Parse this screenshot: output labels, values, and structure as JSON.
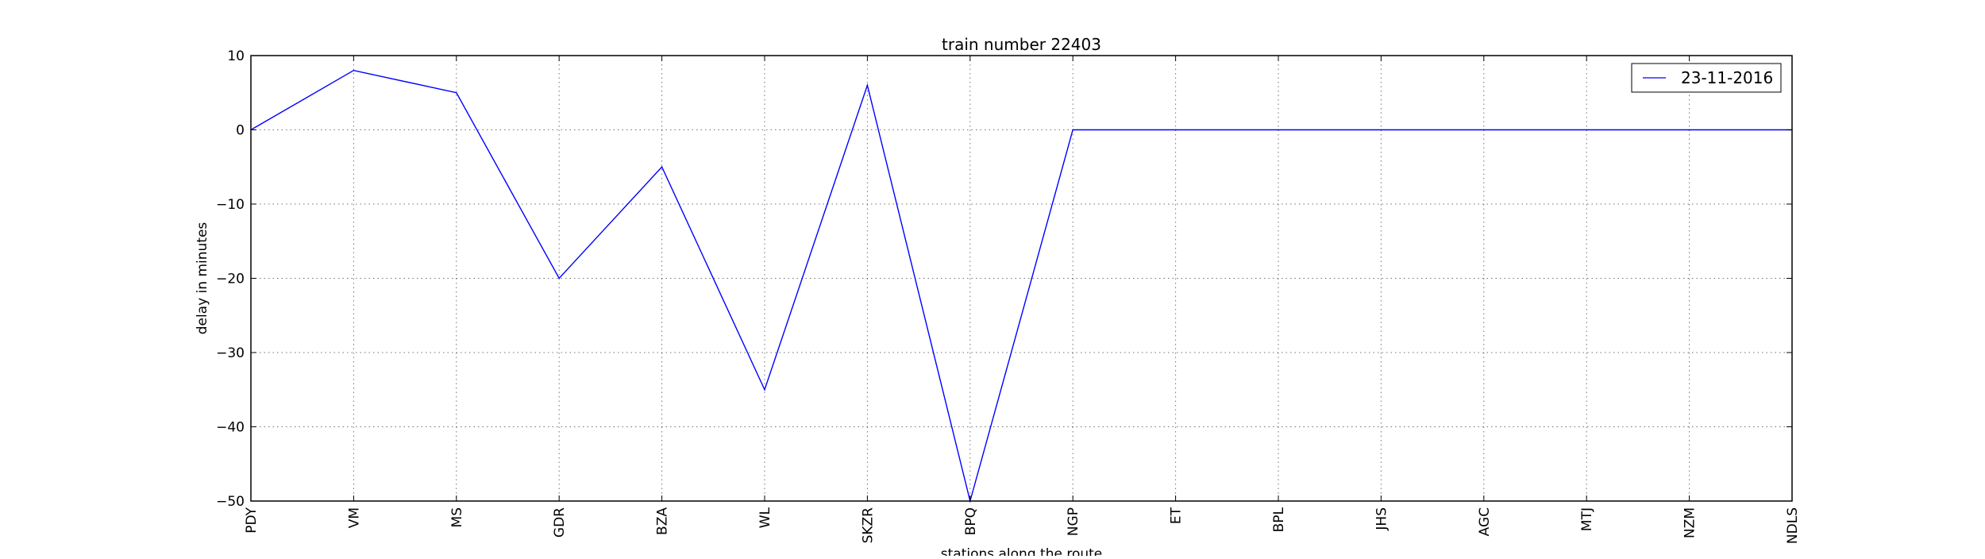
{
  "chart_data": {
    "type": "line",
    "title": "train number 22403",
    "xlabel": "stations along the route",
    "ylabel": "delay in minutes",
    "categories": [
      "PDY",
      "VM",
      "MS",
      "GDR",
      "BZA",
      "WL",
      "SKZR",
      "BPQ",
      "NGP",
      "ET",
      "BPL",
      "JHS",
      "AGC",
      "MTJ",
      "NZM",
      "NDLS"
    ],
    "series": [
      {
        "name": "23-11-2016",
        "color": "#0000ff",
        "values": [
          0,
          8,
          5,
          -20,
          -5,
          -35,
          6,
          -50,
          0,
          0,
          0,
          0,
          0,
          0,
          0,
          0
        ]
      }
    ],
    "ylim": [
      -50,
      10
    ],
    "yticks": [
      10,
      0,
      -10,
      -20,
      -30,
      -40,
      -50
    ],
    "ytick_labels": [
      "10",
      "0",
      "−10",
      "−20",
      "−30",
      "−40",
      "−50"
    ],
    "grid": true,
    "legend_position": "top-right"
  }
}
